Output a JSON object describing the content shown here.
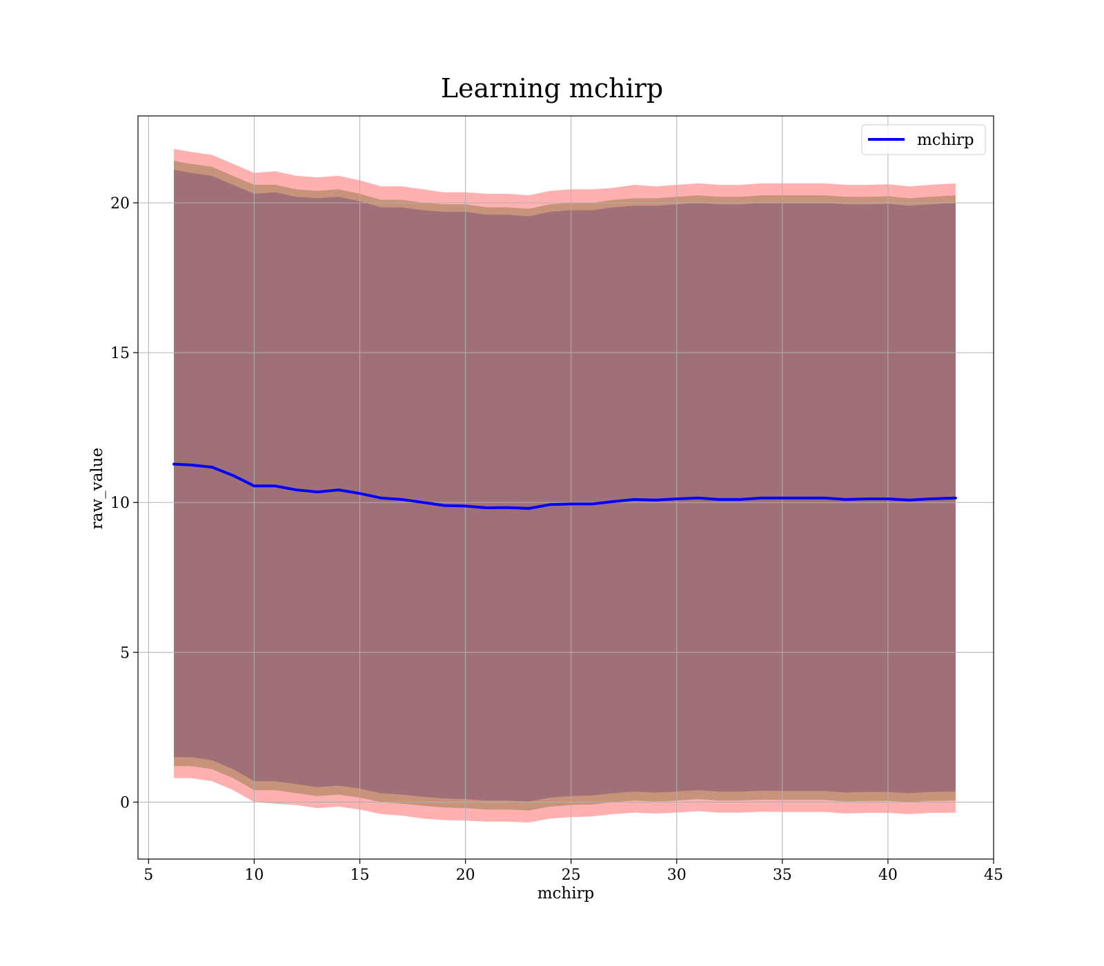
{
  "chart_data": {
    "type": "line",
    "title": "Learning mchirp",
    "xlabel": "mchirp",
    "ylabel": "raw_value",
    "xlim": [
      4.5,
      45
    ],
    "ylim": [
      -1.9,
      22.9
    ],
    "x_ticks": [
      5,
      10,
      15,
      20,
      25,
      30,
      35,
      40,
      45
    ],
    "y_ticks": [
      0,
      5,
      10,
      15,
      20
    ],
    "grid": true,
    "legend": {
      "position": "top-right",
      "entries": [
        "mchirp"
      ]
    },
    "colors": {
      "line": "#0000ff",
      "band_outer": "#ffb0b0",
      "band_middle": "#c7937a",
      "band_inner": "#a07078",
      "grid": "#b0b0b0"
    },
    "x": [
      6.2,
      7,
      8,
      9,
      10,
      11,
      12,
      13,
      14,
      15,
      16,
      17,
      18,
      19,
      20,
      21,
      22,
      23,
      24,
      25,
      26,
      27,
      28,
      29,
      30,
      31,
      32,
      33,
      34,
      35,
      36,
      37,
      38,
      39,
      40,
      41,
      42,
      43.2
    ],
    "series": [
      {
        "name": "mchirp",
        "values": [
          11.28,
          11.25,
          11.18,
          10.9,
          10.55,
          10.55,
          10.42,
          10.35,
          10.42,
          10.3,
          10.15,
          10.1,
          10.0,
          9.9,
          9.88,
          9.82,
          9.83,
          9.8,
          9.93,
          9.95,
          9.95,
          10.03,
          10.1,
          10.08,
          10.12,
          10.15,
          10.1,
          10.1,
          10.15,
          10.15,
          10.15,
          10.15,
          10.1,
          10.12,
          10.12,
          10.08,
          10.12,
          10.15
        ],
        "bands": [
          {
            "upper": [
              21.8,
              21.7,
              21.6,
              21.3,
              21.0,
              21.05,
              20.9,
              20.85,
              20.9,
              20.75,
              20.55,
              20.55,
              20.45,
              20.35,
              20.35,
              20.3,
              20.3,
              20.25,
              20.4,
              20.45,
              20.45,
              20.5,
              20.6,
              20.55,
              20.6,
              20.65,
              20.6,
              20.6,
              20.65,
              20.65,
              20.65,
              20.65,
              20.6,
              20.6,
              20.62,
              20.55,
              20.6,
              20.65
            ],
            "lower": [
              0.8,
              0.8,
              0.7,
              0.4,
              0.0,
              -0.05,
              -0.1,
              -0.2,
              -0.15,
              -0.25,
              -0.4,
              -0.45,
              -0.55,
              -0.6,
              -0.62,
              -0.65,
              -0.65,
              -0.68,
              -0.55,
              -0.5,
              -0.48,
              -0.4,
              -0.35,
              -0.38,
              -0.35,
              -0.3,
              -0.35,
              -0.35,
              -0.32,
              -0.33,
              -0.33,
              -0.33,
              -0.38,
              -0.36,
              -0.36,
              -0.4,
              -0.36,
              -0.35
            ]
          },
          {
            "upper": [
              21.4,
              21.3,
              21.2,
              20.9,
              20.6,
              20.6,
              20.45,
              20.4,
              20.45,
              20.3,
              20.1,
              20.1,
              20.0,
              19.95,
              19.95,
              19.85,
              19.85,
              19.8,
              19.95,
              20.0,
              20.0,
              20.1,
              20.15,
              20.15,
              20.2,
              20.25,
              20.2,
              20.2,
              20.25,
              20.25,
              20.25,
              20.25,
              20.2,
              20.2,
              20.22,
              20.15,
              20.2,
              20.25
            ],
            "lower": [
              1.2,
              1.2,
              1.1,
              0.8,
              0.4,
              0.4,
              0.3,
              0.2,
              0.25,
              0.15,
              0.0,
              -0.05,
              -0.12,
              -0.18,
              -0.2,
              -0.25,
              -0.25,
              -0.28,
              -0.15,
              -0.1,
              -0.08,
              0.0,
              0.05,
              0.02,
              0.05,
              0.1,
              0.05,
              0.05,
              0.08,
              0.07,
              0.07,
              0.07,
              0.02,
              0.04,
              0.04,
              0.0,
              0.04,
              0.05
            ]
          },
          {
            "upper": [
              21.1,
              21.0,
              20.9,
              20.6,
              20.3,
              20.35,
              20.2,
              20.15,
              20.2,
              20.05,
              19.85,
              19.85,
              19.75,
              19.7,
              19.7,
              19.6,
              19.6,
              19.55,
              19.7,
              19.75,
              19.75,
              19.85,
              19.9,
              19.9,
              19.95,
              20.0,
              19.95,
              19.95,
              20.0,
              20.0,
              20.0,
              20.0,
              19.95,
              19.95,
              19.97,
              19.9,
              19.95,
              20.0
            ],
            "lower": [
              1.5,
              1.5,
              1.4,
              1.1,
              0.7,
              0.7,
              0.6,
              0.5,
              0.55,
              0.45,
              0.3,
              0.25,
              0.18,
              0.12,
              0.1,
              0.05,
              0.05,
              0.02,
              0.15,
              0.2,
              0.22,
              0.3,
              0.35,
              0.32,
              0.35,
              0.4,
              0.35,
              0.35,
              0.38,
              0.37,
              0.37,
              0.37,
              0.32,
              0.34,
              0.34,
              0.3,
              0.34,
              0.35
            ]
          }
        ]
      }
    ]
  }
}
